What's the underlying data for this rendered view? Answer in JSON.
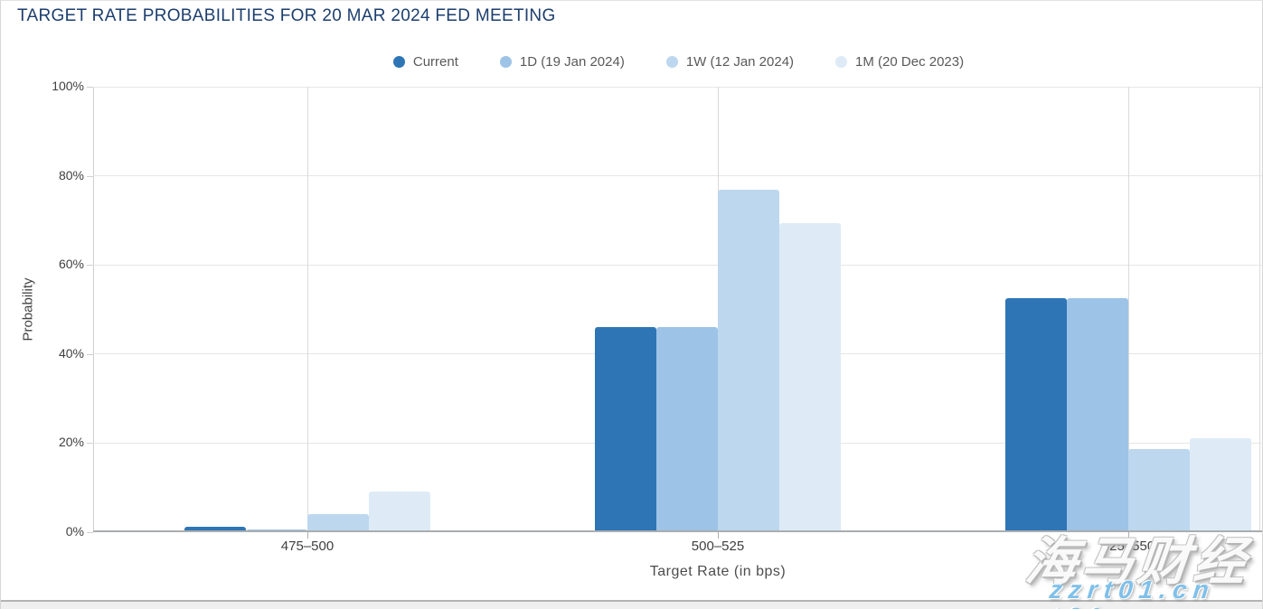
{
  "page": {
    "title": "TARGET RATE PROBABILITIES FOR 20 MAR 2024 FED MEETING",
    "watermark": {
      "brand": "海马财经",
      "url": "zzrt01.cn"
    }
  },
  "chart_data": {
    "type": "bar",
    "title": "TARGET RATE PROBABILITIES FOR 20 MAR 2024 FED MEETING",
    "xlabel": "Target Rate (in bps)",
    "ylabel": "Probability",
    "ylim": [
      0,
      100
    ],
    "y_ticks": [
      "0%",
      "20%",
      "40%",
      "60%",
      "80%",
      "100%"
    ],
    "grid": true,
    "legend_position": "top-center",
    "categories": [
      "475–500",
      "500–525",
      "525–550"
    ],
    "series": [
      {
        "name": "Current",
        "color": "#2E75B6",
        "values": [
          1.3,
          46.1,
          52.6
        ]
      },
      {
        "name": "1D (19 Jan 2024)",
        "color": "#9DC3E6",
        "values": [
          0.7,
          46.1,
          52.6
        ]
      },
      {
        "name": "1W (12 Jan 2024)",
        "color": "#BDD7EE",
        "values": [
          4.1,
          76.8,
          18.7
        ]
      },
      {
        "name": "1M (20 Dec 2023)",
        "color": "#DEEBF7",
        "values": [
          9.1,
          69.4,
          21.0
        ]
      }
    ],
    "colors": {
      "title": "#1c3e6e",
      "axis_text": "#3f3f3f",
      "legend_text": "#595959"
    }
  }
}
